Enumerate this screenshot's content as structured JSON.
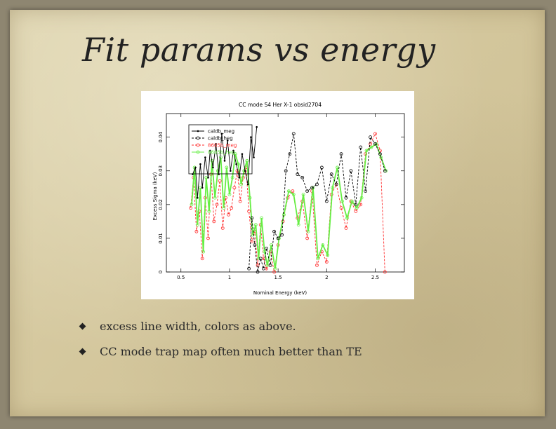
{
  "slide": {
    "title": "Fit params vs energy",
    "bullets": [
      "excess line width, colors as above.",
      "CC mode trap map often much better than TE"
    ]
  },
  "chart_data": {
    "type": "line",
    "title": "CC mode S4 Her X-1 obsid2704",
    "xlabel": "Nominal Energy (keV)",
    "ylabel": "Excess Sigma (keV)",
    "xlim": [
      0.35,
      2.8
    ],
    "ylim": [
      0,
      0.047
    ],
    "xticks": [
      0.5,
      1,
      1.5,
      2,
      2.5
    ],
    "xtick_labels": [
      "0.5",
      "1",
      "1.5",
      "2",
      "2.5"
    ],
    "yticks": [
      0,
      0.01,
      0.02,
      0.03,
      0.04
    ],
    "ytick_labels": [
      "0",
      "0.01",
      "0.02",
      "0.03",
      "0.04"
    ],
    "legend_position": "top-left",
    "series": [
      {
        "name": "caldb_meg",
        "color": "#000000",
        "marker": "dot",
        "dash": "solid",
        "x": [
          0.62,
          0.65,
          0.67,
          0.7,
          0.72,
          0.75,
          0.78,
          0.8,
          0.83,
          0.86,
          0.89,
          0.92,
          0.95,
          0.98,
          1.01,
          1.04,
          1.07,
          1.1,
          1.13,
          1.16,
          1.19,
          1.22,
          1.25,
          1.28
        ],
        "y": [
          0.029,
          0.031,
          0.022,
          0.032,
          0.025,
          0.034,
          0.028,
          0.036,
          0.031,
          0.038,
          0.029,
          0.041,
          0.033,
          0.039,
          0.03,
          0.036,
          0.032,
          0.028,
          0.035,
          0.03,
          0.026,
          0.04,
          0.034,
          0.043
        ]
      },
      {
        "name": "caldb_heg",
        "color": "#000000",
        "marker": "circle",
        "dash": "dashed",
        "x": [
          1.2,
          1.23,
          1.26,
          1.29,
          1.32,
          1.35,
          1.38,
          1.42,
          1.46,
          1.5,
          1.54,
          1.58,
          1.62,
          1.66,
          1.7,
          1.75,
          1.8,
          1.85,
          1.9,
          1.95,
          2.0,
          2.05,
          2.1,
          2.15,
          2.2,
          2.25,
          2.3,
          2.35,
          2.4,
          2.45,
          2.5,
          2.55,
          2.6
        ],
        "y": [
          0.001,
          0.016,
          0.008,
          0.0,
          0.004,
          0.001,
          0.007,
          0.002,
          0.012,
          0.01,
          0.011,
          0.03,
          0.035,
          0.041,
          0.029,
          0.028,
          0.024,
          0.025,
          0.026,
          0.031,
          0.021,
          0.029,
          0.026,
          0.035,
          0.022,
          0.03,
          0.02,
          0.037,
          0.024,
          0.04,
          0.038,
          0.035,
          0.03
        ]
      },
      {
        "name": "8605b_meg",
        "color": "#ff2a2a",
        "marker": "circle",
        "dash": "dashed",
        "x": [
          0.6,
          0.63,
          0.66,
          0.69,
          0.72,
          0.75,
          0.78,
          0.81,
          0.84,
          0.87,
          0.9,
          0.93,
          0.96,
          0.99,
          1.02,
          1.05,
          1.08,
          1.11,
          1.14,
          1.17,
          1.2,
          1.23,
          1.26,
          1.29,
          1.32,
          1.35,
          1.38,
          1.42,
          1.46,
          1.5,
          1.55,
          1.6,
          1.65,
          1.7,
          1.75,
          1.8,
          1.85,
          1.9,
          1.95,
          2.0,
          2.05,
          2.1,
          2.15,
          2.2,
          2.25,
          2.3,
          2.35,
          2.4,
          2.45,
          2.5,
          2.55,
          2.6
        ],
        "y": [
          0.019,
          0.028,
          0.012,
          0.018,
          0.004,
          0.022,
          0.01,
          0.029,
          0.015,
          0.02,
          0.027,
          0.013,
          0.022,
          0.017,
          0.019,
          0.025,
          0.03,
          0.021,
          0.028,
          0.031,
          0.018,
          0.009,
          0.012,
          0.002,
          0.014,
          0.004,
          0.001,
          0.006,
          0.0,
          0.008,
          0.015,
          0.022,
          0.024,
          0.016,
          0.021,
          0.01,
          0.024,
          0.002,
          0.006,
          0.003,
          0.023,
          0.026,
          0.019,
          0.013,
          0.021,
          0.018,
          0.02,
          0.035,
          0.038,
          0.041,
          0.036,
          0.0
        ]
      },
      {
        "name": "8605b_heg",
        "color": "#66ee44",
        "marker": "circle",
        "dash": "solid",
        "x": [
          0.61,
          0.64,
          0.67,
          0.7,
          0.73,
          0.76,
          0.79,
          0.82,
          0.85,
          0.88,
          0.91,
          0.94,
          0.97,
          1.0,
          1.03,
          1.06,
          1.09,
          1.12,
          1.15,
          1.18,
          1.21,
          1.24,
          1.27,
          1.3,
          1.33,
          1.36,
          1.39,
          1.43,
          1.47,
          1.51,
          1.56,
          1.61,
          1.66,
          1.71,
          1.76,
          1.81,
          1.86,
          1.91,
          1.96,
          2.01,
          2.06,
          2.11,
          2.16,
          2.21,
          2.26,
          2.31,
          2.36,
          2.41,
          2.46,
          2.51,
          2.56,
          2.61
        ],
        "y": [
          0.02,
          0.031,
          0.014,
          0.025,
          0.006,
          0.028,
          0.018,
          0.033,
          0.022,
          0.03,
          0.034,
          0.019,
          0.031,
          0.023,
          0.028,
          0.035,
          0.032,
          0.026,
          0.03,
          0.033,
          0.022,
          0.011,
          0.014,
          0.004,
          0.016,
          0.006,
          0.002,
          0.008,
          0.001,
          0.01,
          0.017,
          0.024,
          0.023,
          0.014,
          0.023,
          0.012,
          0.025,
          0.004,
          0.008,
          0.005,
          0.025,
          0.031,
          0.021,
          0.016,
          0.021,
          0.019,
          0.022,
          0.036,
          0.037,
          0.038,
          0.034,
          0.03
        ]
      }
    ]
  }
}
